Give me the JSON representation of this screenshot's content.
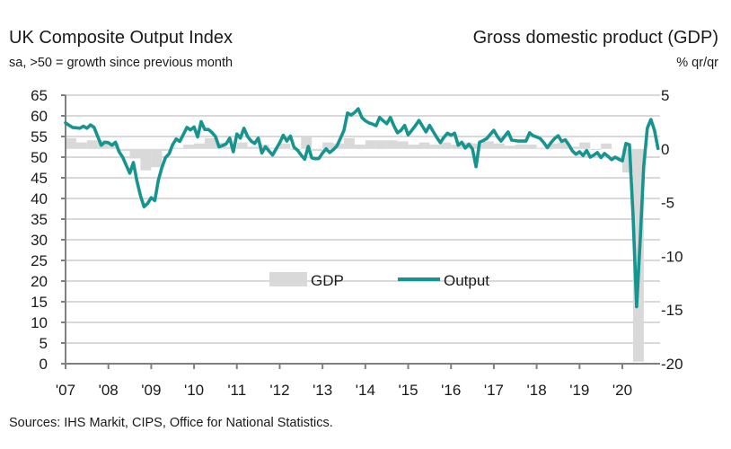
{
  "chart_data": {
    "type": "line+bar",
    "title_left": "UK Composite Output Index",
    "subtitle_left": "sa, >50 = growth since previous month",
    "title_right": "Gross domestic product (GDP)",
    "subtitle_right": "% qr/qr",
    "source": "Sources: IHS Markit, CIPS, Office for National Statistics.",
    "left_axis": {
      "ylim": [
        0,
        65
      ],
      "ticks": [
        "65",
        "60",
        "55",
        "50",
        "45",
        "40",
        "35",
        "30",
        "25",
        "20",
        "15",
        "10",
        "5",
        "0"
      ]
    },
    "right_axis": {
      "ylim": [
        -20,
        5
      ],
      "ticks": [
        "5",
        "0",
        "-5",
        "-10",
        "-15",
        "-20"
      ]
    },
    "x_ticks": [
      "'07",
      "'08",
      "'09",
      "'10",
      "'11",
      "'12",
      "'13",
      "'14",
      "'15",
      "'16",
      "'17",
      "'18",
      "'19",
      "'20"
    ],
    "grid": true,
    "legend_position": "center",
    "colors": {
      "output": "#16948f",
      "gdp": "#d9d9d9",
      "grid": "#d9d9d9",
      "axis": "#808080"
    },
    "series": [
      {
        "name": "Output",
        "kind": "line",
        "axis": "left",
        "frequency": "monthly",
        "start": "2006-12",
        "values": [
          58.3,
          57.7,
          57.2,
          57.1,
          57.0,
          57.5,
          57.0,
          57.8,
          57.2,
          55.0,
          52.9,
          53.6,
          53.5,
          52.9,
          53.6,
          51.3,
          50.0,
          48.0,
          46.1,
          48.7,
          44.2,
          40.6,
          38.0,
          38.8,
          40.2,
          39.5,
          44.4,
          47.5,
          49.9,
          50.8,
          53.0,
          54.4,
          53.8,
          55.5,
          57.2,
          56.6,
          57.3,
          54.9,
          58.6,
          56.7,
          56.7,
          56.0,
          55.0,
          52.5,
          52.8,
          53.2,
          54.6,
          51.3,
          55.6,
          54.6,
          57.0,
          55.0,
          53.9,
          53.3,
          54.6,
          51.0,
          52.5,
          51.5,
          50.5,
          52.0,
          53.5,
          55.3,
          53.9,
          55.1,
          52.4,
          51.7,
          50.5,
          49.5,
          52.6,
          49.8,
          49.6,
          49.7,
          51.0,
          52.0,
          51.1,
          51.8,
          52.7,
          54.5,
          56.5,
          60.7,
          60.2,
          60.8,
          61.7,
          59.6,
          58.8,
          58.3,
          58.0,
          57.6,
          59.6,
          58.8,
          58.1,
          59.6,
          57.6,
          55.9,
          56.5,
          57.7,
          55.4,
          56.5,
          57.6,
          58.9,
          57.5,
          56.1,
          57.7,
          56.2,
          54.8,
          53.5,
          54.8,
          55.8,
          55.3,
          55.8,
          52.9,
          53.6,
          52.2,
          53.1,
          52.0,
          47.7,
          53.6,
          54.0,
          54.5,
          55.5,
          56.5,
          55.0,
          53.9,
          55.0,
          56.1,
          54.1,
          54.0,
          53.9,
          53.9,
          53.9,
          55.9,
          55.2,
          54.9,
          54.5,
          53.5,
          52.3,
          53.5,
          54.5,
          55.2,
          53.8,
          54.2,
          53.0,
          51.5,
          50.7,
          51.3,
          50.4,
          51.6,
          50.0,
          50.5,
          51.1,
          49.9,
          50.9,
          50.2,
          49.4,
          50.0,
          49.5,
          49.1,
          53.3,
          53.0,
          36.0,
          13.8,
          30.0,
          47.7,
          57.0,
          59.1,
          56.5,
          52.1
        ]
      },
      {
        "name": "GDP",
        "kind": "bar",
        "axis": "right",
        "frequency": "quarterly",
        "start": "2007-Q1",
        "values": [
          1.0,
          0.6,
          0.8,
          0.8,
          0.5,
          -0.2,
          -0.9,
          -2.0,
          -1.7,
          -0.2,
          0.1,
          0.4,
          0.5,
          1.0,
          0.6,
          0.2,
          0.6,
          0.2,
          0.4,
          0.1,
          0.5,
          -0.1,
          1.1,
          -0.2,
          0.6,
          0.5,
          1.0,
          0.4,
          0.8,
          0.8,
          0.8,
          0.7,
          0.4,
          0.6,
          0.4,
          0.6,
          0.4,
          0.6,
          0.5,
          0.7,
          0.5,
          0.3,
          0.4,
          0.4,
          0.1,
          0.5,
          0.6,
          0.2,
          0.6,
          -0.1,
          0.5,
          0.0,
          -2.2,
          -19.8
        ]
      }
    ]
  }
}
